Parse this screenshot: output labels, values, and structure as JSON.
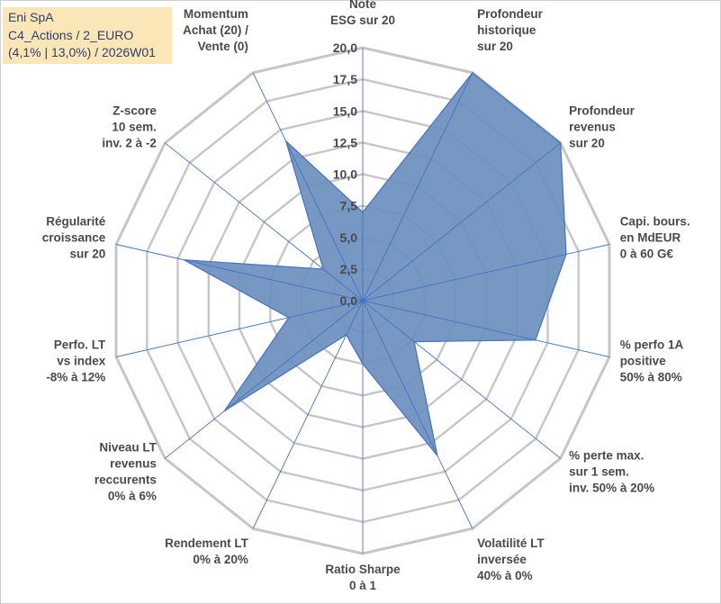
{
  "title_box": {
    "line1": "Eni SpA",
    "line2": "C4_Actions / 2_EURO",
    "line3": "(4,1% | 13,0%) / 2026W01"
  },
  "colors": {
    "fill": "#6b8fbd",
    "stroke": "#4472c4",
    "grid": "#c6c6c6",
    "spoke": "#4472c4",
    "title_bg": "#fbe6b8"
  },
  "chart_data": {
    "type": "radar",
    "title": "",
    "rmin": 0,
    "rmax": 20,
    "ticks": [
      "0,0",
      "2,5",
      "5,0",
      "7,5",
      "10,0",
      "12,5",
      "15,0",
      "17,5",
      "20,0"
    ],
    "axes": [
      {
        "label": [
          "Note",
          "ESG sur 20"
        ],
        "value": 7.0
      },
      {
        "label": [
          "Profondeur",
          "historique",
          "sur 20"
        ],
        "value": 20.0
      },
      {
        "label": [
          "Profondeur",
          "revenus",
          "sur 20"
        ],
        "value": 20.0
      },
      {
        "label": [
          "Capi. bours.",
          "en MdEUR",
          "0 à 60 G€"
        ],
        "value": 16.5
      },
      {
        "label": [
          "% perfo 1A",
          "positive",
          "50% à 80%"
        ],
        "value": 14.0
      },
      {
        "label": [
          "% perte max.",
          "sur 1 sem.",
          "inv. 50% à 20%"
        ],
        "value": 5.2
      },
      {
        "label": [
          "Volatilité LT",
          "inversée",
          "40% à 0%"
        ],
        "value": 13.6
      },
      {
        "label": [
          "Ratio Sharpe",
          "0 à 1"
        ],
        "value": 5.0
      },
      {
        "label": [
          "Rendement LT",
          "0% à 20%"
        ],
        "value": 3.0
      },
      {
        "label": [
          "Niveau LT",
          "revenus",
          "reccurents",
          "0% à 6%"
        ],
        "value": 14.0
      },
      {
        "label": [
          "Perfo. LT",
          "vs index",
          "-8% à 12%"
        ],
        "value": 6.0
      },
      {
        "label": [
          "Régularité",
          "croissance",
          "sur 20"
        ],
        "value": 14.5
      },
      {
        "label": [
          "Z-score",
          "10 sem.",
          "inv. 2 à -2"
        ],
        "value": 4.0
      },
      {
        "label": [
          "Momentum",
          "Achat (20) /",
          "Vente (0)"
        ],
        "value": 14.0
      }
    ]
  }
}
